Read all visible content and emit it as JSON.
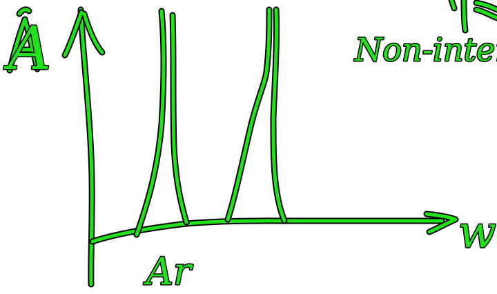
{
  "ink_color": "#22e01b",
  "outline_color": "#000000",
  "labels": {
    "y_axis": "A",
    "x_axis": "w",
    "top_right": "Non-interacting",
    "bottom": "Ar"
  },
  "icons": {
    "y_arrow": "arrow-up-icon",
    "x_arrow": "arrow-right-icon"
  }
}
